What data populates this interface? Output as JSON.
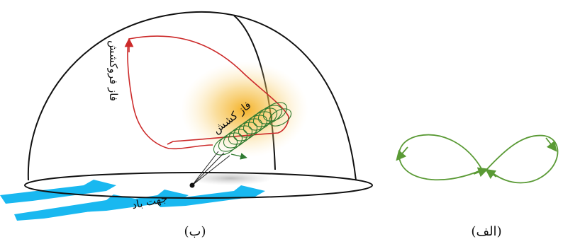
{
  "panel_b": {
    "caption": "(ب)",
    "label_retraction": "فاز فروکشش",
    "label_traction": "فاز کشش",
    "label_wind": "جهت باد",
    "color_retraction_path": "#cc2a2a",
    "color_traction_path": "#3a8a3a",
    "color_wind": "#19b8f0",
    "color_glow": "#f2a300"
  },
  "panel_a": {
    "caption": "(الف)",
    "color_path": "#5a9a35"
  }
}
